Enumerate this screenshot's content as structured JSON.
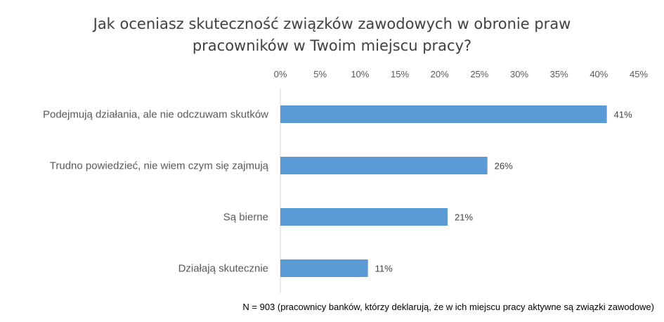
{
  "chart_data": {
    "type": "bar",
    "orientation": "horizontal",
    "title_lines": [
      "Jak oceniasz skuteczność związków zawodowych w obronie praw",
      "pracowników w Twoim miejscu pracy?"
    ],
    "categories": [
      "Podejmują działania, ale nie odczuwam skutków",
      "Trudno powiedzieć, nie wiem czym się zajmują",
      "Są bierne",
      "Działają skutecznie"
    ],
    "values": [
      41,
      26,
      21,
      11
    ],
    "data_labels": [
      "41%",
      "26%",
      "21%",
      "11%"
    ],
    "x_ticks": [
      0,
      5,
      10,
      15,
      20,
      25,
      30,
      35,
      40,
      45
    ],
    "x_tick_labels": [
      "0%",
      "5%",
      "10%",
      "15%",
      "20%",
      "25%",
      "30%",
      "35%",
      "40%",
      "45%"
    ],
    "xlim": [
      0,
      45
    ],
    "x_axis_position": "top",
    "grid": false,
    "bar_color": "#5B9BD5",
    "footnote": "N = 903 (pracownicy banków, którzy deklarują, że w ich miejscu pracy aktywne są związki zawodowe)"
  }
}
